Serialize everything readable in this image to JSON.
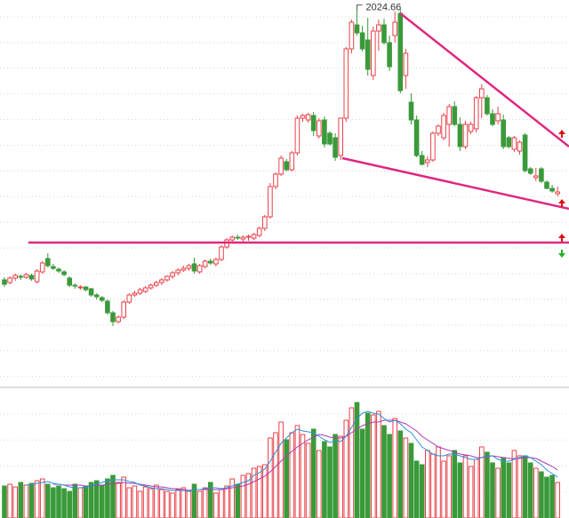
{
  "chart_data": {
    "type": "candlestick",
    "open": [
      1410,
      1404,
      1414,
      1418,
      1416,
      1420,
      1406,
      1428,
      1458,
      1440,
      1434,
      1428,
      1414,
      1398,
      1392,
      1394,
      1390,
      1376,
      1370,
      1362,
      1336,
      1316,
      1326,
      1360,
      1376,
      1380,
      1384,
      1392,
      1398,
      1404,
      1410,
      1418,
      1426,
      1432,
      1436,
      1446,
      1428,
      1440,
      1452,
      1446,
      1456,
      1484,
      1500,
      1506,
      1502,
      1506,
      1504,
      1510,
      1526,
      1552,
      1620,
      1648,
      1676,
      1658,
      1696,
      1774,
      1770,
      1780,
      1734,
      1770,
      1740,
      1730,
      1690,
      1774,
      1930,
      1984,
      1966,
      1950,
      1870,
      1970,
      1984,
      1944,
      1960,
      2010,
      1870,
      1810,
      1770,
      1690,
      1674,
      1680,
      1740,
      1730,
      1760,
      1800,
      1760,
      1710,
      1744,
      1750,
      1820,
      1820,
      1784,
      1768,
      1770,
      1730,
      1704,
      1700,
      1736,
      1660,
      1640,
      1660,
      1630,
      1616,
      1604
    ],
    "high": [
      1416,
      1418,
      1424,
      1422,
      1426,
      1424,
      1434,
      1452,
      1470,
      1446,
      1438,
      1432,
      1418,
      1402,
      1398,
      1396,
      1392,
      1380,
      1374,
      1366,
      1340,
      1330,
      1364,
      1380,
      1386,
      1392,
      1396,
      1402,
      1408,
      1414,
      1420,
      1430,
      1436,
      1442,
      1446,
      1460,
      1446,
      1456,
      1458,
      1460,
      1488,
      1504,
      1510,
      1512,
      1510,
      1512,
      1516,
      1530,
      1556,
      1628,
      1652,
      1690,
      1682,
      1700,
      1780,
      1784,
      1786,
      1788,
      1774,
      1778,
      1744,
      1740,
      1774,
      1934,
      1996,
      2024.66,
      1982,
      2000,
      1980,
      1996,
      1998,
      1960,
      2014,
      2020,
      1930,
      1830,
      1780,
      1700,
      1688,
      1744,
      1760,
      1786,
      1806,
      1812,
      1776,
      1768,
      1766,
      1824,
      1850,
      1826,
      1794,
      1800,
      1782,
      1734,
      1734,
      1724,
      1740,
      1664,
      1662,
      1664,
      1634,
      1624,
      1620
    ],
    "low": [
      1394,
      1400,
      1408,
      1410,
      1412,
      1408,
      1402,
      1424,
      1438,
      1432,
      1426,
      1418,
      1394,
      1390,
      1388,
      1384,
      1372,
      1366,
      1360,
      1332,
      1306,
      1312,
      1322,
      1356,
      1372,
      1376,
      1380,
      1388,
      1394,
      1398,
      1406,
      1412,
      1420,
      1428,
      1430,
      1424,
      1424,
      1436,
      1444,
      1440,
      1452,
      1480,
      1494,
      1500,
      1496,
      1498,
      1500,
      1506,
      1520,
      1548,
      1614,
      1644,
      1654,
      1654,
      1690,
      1766,
      1764,
      1734,
      1728,
      1708,
      1712,
      1678,
      1680,
      1766,
      1920,
      1960,
      1924,
      1870,
      1860,
      1926,
      1940,
      1880,
      1944,
      1830,
      1840,
      1760,
      1686,
      1668,
      1664,
      1676,
      1734,
      1724,
      1710,
      1756,
      1700,
      1704,
      1738,
      1742,
      1774,
      1780,
      1756,
      1760,
      1704,
      1706,
      1698,
      1692,
      1652,
      1646,
      1632,
      1628,
      1614,
      1606,
      1598
    ],
    "close": [
      1400,
      1414,
      1420,
      1416,
      1422,
      1412,
      1430,
      1448,
      1442,
      1436,
      1430,
      1422,
      1398,
      1396,
      1394,
      1388,
      1376,
      1372,
      1364,
      1336,
      1316,
      1326,
      1360,
      1376,
      1380,
      1388,
      1392,
      1398,
      1404,
      1410,
      1418,
      1426,
      1432,
      1436,
      1442,
      1430,
      1442,
      1452,
      1448,
      1456,
      1484,
      1500,
      1506,
      1504,
      1506,
      1508,
      1512,
      1526,
      1552,
      1620,
      1648,
      1684,
      1658,
      1696,
      1774,
      1780,
      1782,
      1746,
      1768,
      1716,
      1716,
      1686,
      1774,
      1930,
      1990,
      1966,
      1930,
      1884,
      1970,
      1984,
      1944,
      1890,
      1990,
      1836,
      1920,
      1770,
      1690,
      1670,
      1680,
      1740,
      1756,
      1780,
      1800,
      1760,
      1710,
      1760,
      1760,
      1820,
      1840,
      1784,
      1760,
      1784,
      1710,
      1710,
      1730,
      1720,
      1656,
      1650,
      1644,
      1632,
      1616,
      1610,
      1608
    ],
    "volume": [
      36,
      38,
      35,
      40,
      37,
      39,
      42,
      44,
      38,
      34,
      36,
      33,
      30,
      38,
      34,
      36,
      40,
      42,
      37,
      44,
      48,
      40,
      46,
      34,
      36,
      30,
      35,
      33,
      37,
      32,
      30,
      28,
      32,
      34,
      30,
      38,
      30,
      34,
      40,
      28,
      32,
      36,
      44,
      38,
      48,
      50,
      56,
      58,
      60,
      90,
      96,
      108,
      88,
      96,
      104,
      94,
      84,
      100,
      76,
      86,
      80,
      94,
      92,
      110,
      124,
      130,
      100,
      118,
      116,
      120,
      104,
      94,
      112,
      98,
      90,
      84,
      64,
      60,
      76,
      72,
      80,
      64,
      70,
      76,
      62,
      70,
      58,
      66,
      80,
      74,
      62,
      56,
      68,
      62,
      76,
      70,
      70,
      62,
      56,
      52,
      46,
      48,
      40
    ],
    "volume_ma": [
      {
        "color": "#2a8fd6",
        "values": [
          null,
          null,
          null,
          null,
          37,
          38,
          39,
          40,
          41,
          39,
          38,
          37,
          35,
          34,
          34,
          35,
          36,
          38,
          40,
          42,
          43,
          43,
          43,
          41,
          40,
          37,
          36,
          34,
          33,
          33,
          32,
          31,
          31,
          31,
          30,
          32,
          32,
          33,
          34,
          34,
          33,
          34,
          36,
          38,
          40,
          42,
          48,
          51,
          55,
          64,
          74,
          84,
          90,
          96,
          100,
          98,
          97,
          96,
          92,
          88,
          85,
          87,
          86,
          92,
          102,
          112,
          118,
          120,
          118,
          117,
          112,
          108,
          110,
          106,
          100,
          96,
          88,
          80,
          76,
          72,
          70,
          70,
          72,
          72,
          70,
          68,
          66,
          66,
          68,
          70,
          70,
          66,
          64,
          64,
          66,
          68,
          70,
          68,
          64,
          60,
          54,
          50,
          46
        ]
      },
      {
        "color": "#b03ab0",
        "values": [
          null,
          null,
          null,
          null,
          null,
          null,
          null,
          null,
          null,
          38,
          38,
          37,
          37,
          37,
          37,
          36,
          36,
          37,
          37,
          38,
          39,
          39,
          40,
          39,
          39,
          38,
          37,
          36,
          35,
          35,
          34,
          33,
          33,
          32,
          31,
          32,
          32,
          32,
          32,
          32,
          32,
          33,
          34,
          35,
          36,
          38,
          41,
          44,
          47,
          52,
          58,
          64,
          70,
          75,
          80,
          84,
          88,
          91,
          94,
          93,
          91,
          90,
          90,
          92,
          96,
          100,
          104,
          106,
          108,
          108,
          110,
          110,
          110,
          108,
          106,
          102,
          98,
          92,
          88,
          84,
          80,
          78,
          76,
          74,
          72,
          71,
          70,
          68,
          68,
          69,
          70,
          69,
          68,
          67,
          67,
          67,
          68,
          68,
          67,
          64,
          61,
          58,
          54
        ]
      }
    ],
    "trend_lines": [
      {
        "x": [
          62.3,
          104.1
        ],
        "y": [
          1684,
          1570
        ],
        "color": "#e0287f"
      },
      {
        "x": [
          73,
          104.1
        ],
        "y": [
          2010,
          1710
        ],
        "color": "#e0287f"
      },
      {
        "x": [
          4.4,
          104.1
        ],
        "y": [
          1494,
          1494
        ],
        "color": "#e0287f"
      }
    ],
    "ylim": [
      1170,
      2040
    ],
    "volume_lim": [
      0,
      146
    ],
    "up_color": "#e8424a",
    "down_color": "#3a9a3a"
  }
}
